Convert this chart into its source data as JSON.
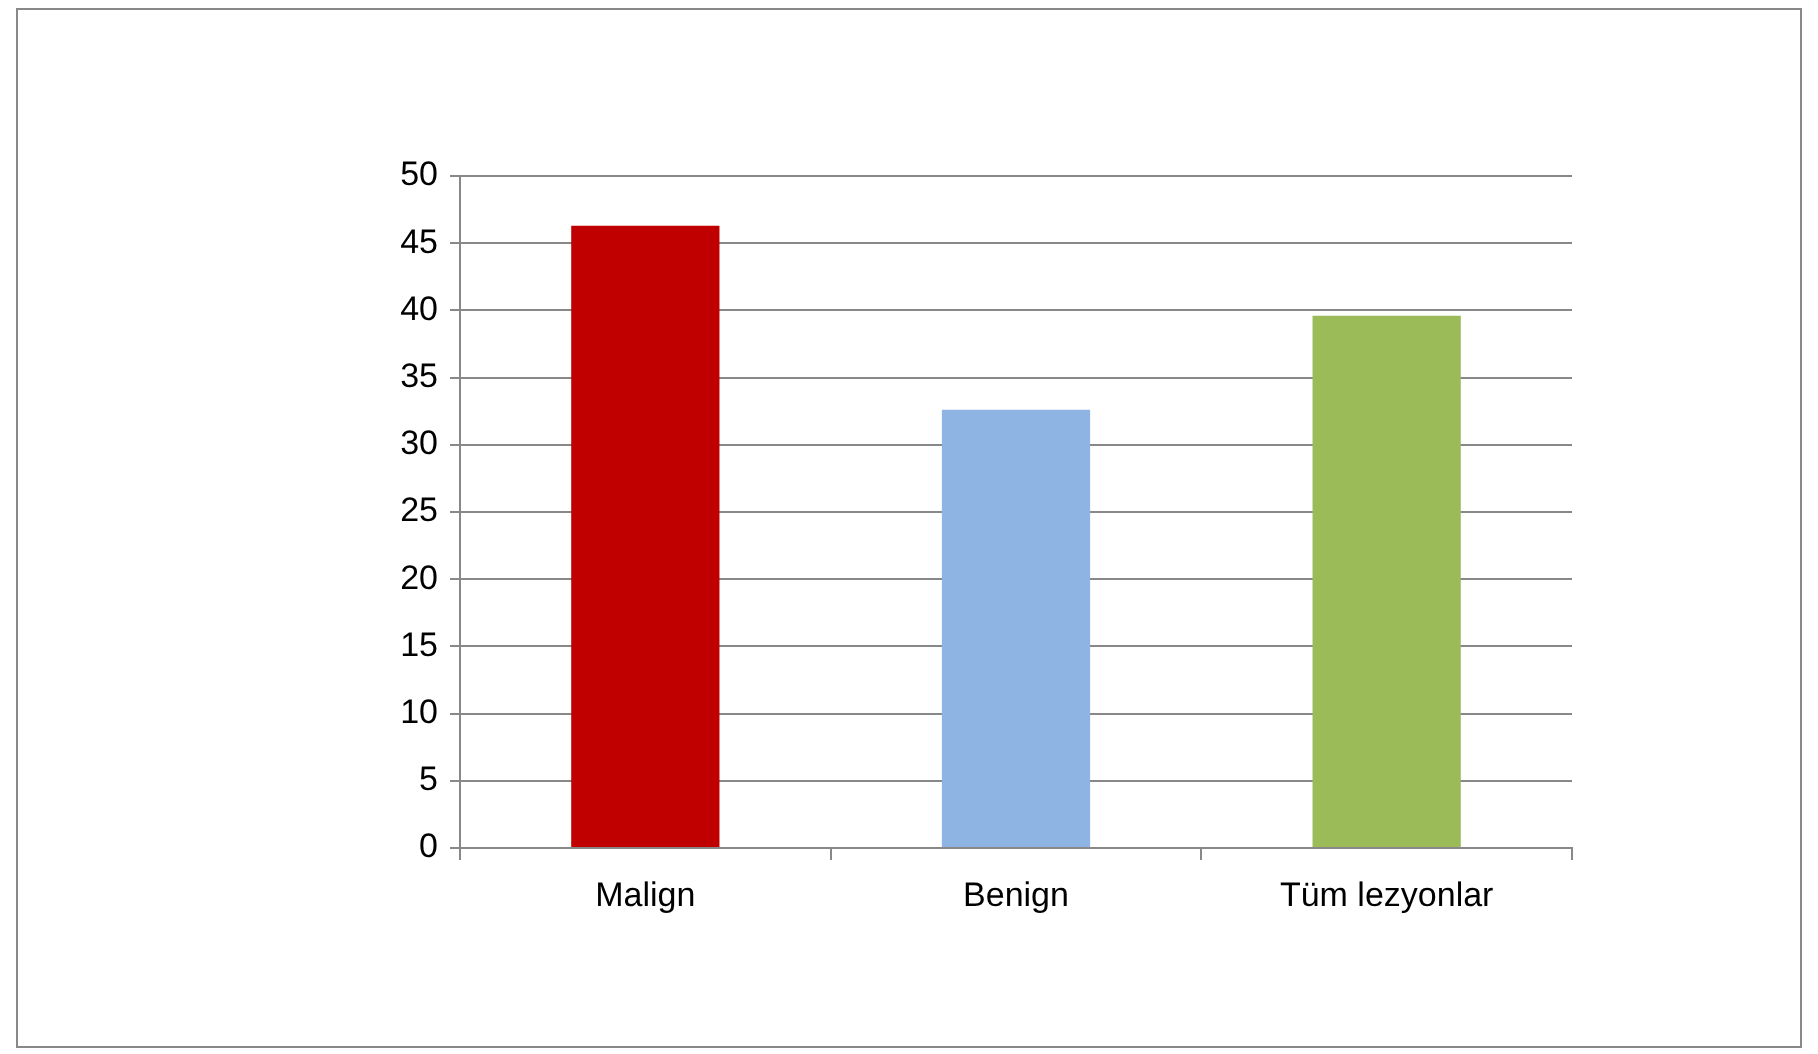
{
  "chart_data": {
    "type": "bar",
    "categories": [
      "Malign",
      "Benign",
      "Tüm lezyonlar"
    ],
    "values": [
      46.3,
      32.6,
      39.6
    ],
    "colors": [
      "#c00000",
      "#8eb4e3",
      "#9bbb59"
    ],
    "ylim": [
      0,
      50
    ],
    "yticks": [
      0,
      5,
      10,
      15,
      20,
      25,
      30,
      35,
      40,
      45,
      50
    ],
    "grid": "y",
    "legend": false
  }
}
